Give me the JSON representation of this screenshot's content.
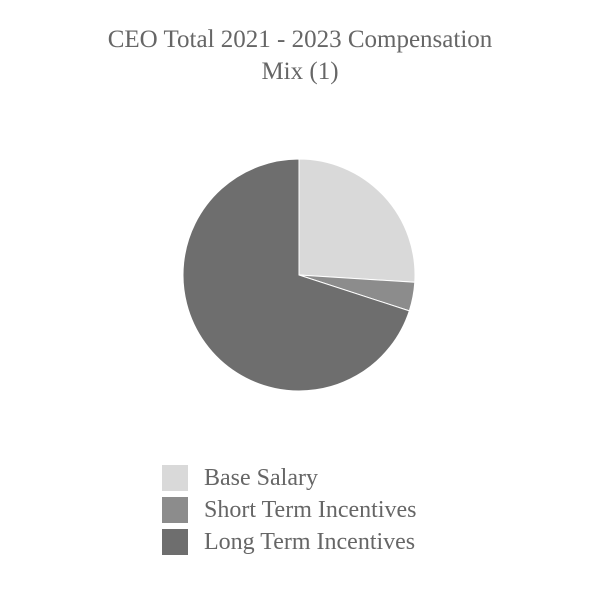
{
  "chart_data": {
    "type": "pie",
    "title_lines": [
      "CEO Total 2021 - 2023 Compensation",
      "Mix (1)"
    ],
    "categories": [
      "Base Salary",
      "Short Term Incentives",
      "Long Term Incentives"
    ],
    "values": [
      26,
      4,
      70
    ],
    "colors": [
      "#d9d9d9",
      "#8c8c8c",
      "#6e6e6e"
    ],
    "start_angle": "12 o'clock",
    "direction": "clockwise",
    "legend_position": "bottom"
  }
}
